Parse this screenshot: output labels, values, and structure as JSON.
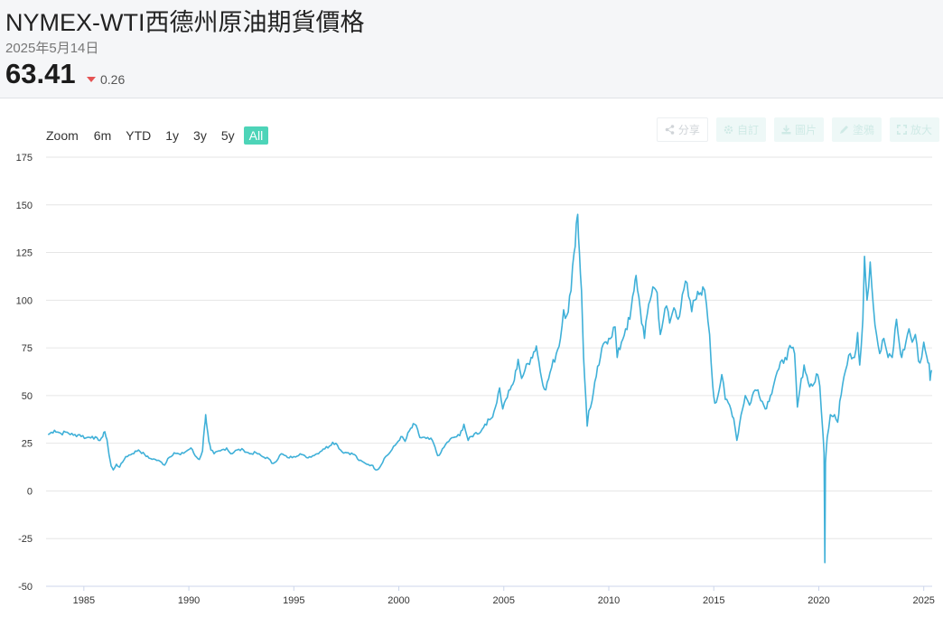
{
  "header": {
    "title": "NYMEX-WTI西德州原油期貨價格",
    "date": "2025年5月14日",
    "price": "63.41",
    "change": "0.26",
    "change_color": "#e55353"
  },
  "range_selector": {
    "label": "Zoom",
    "buttons": [
      "6m",
      "YTD",
      "1y",
      "3y",
      "5y",
      "All"
    ],
    "active": "All",
    "active_color": "#4dd4b8"
  },
  "toolbar": [
    {
      "label": "分享",
      "icon": "share-icon"
    },
    {
      "label": "自訂",
      "icon": "gear-icon"
    },
    {
      "label": "圖片",
      "icon": "download-icon"
    },
    {
      "label": "塗鴉",
      "icon": "pencil-icon"
    },
    {
      "label": "放大",
      "icon": "expand-icon"
    }
  ],
  "chart_data": {
    "type": "line",
    "title": "",
    "xlabel": "",
    "ylabel": "",
    "xlim": [
      1983.2,
      2025.4
    ],
    "ylim": [
      -50,
      175
    ],
    "x_ticks": [
      "1985",
      "1990",
      "1995",
      "2000",
      "2005",
      "2010",
      "2015",
      "2020",
      "2025"
    ],
    "y_ticks": [
      "175",
      "150",
      "125",
      "100",
      "75",
      "50",
      "25",
      "0",
      "-25",
      "-50"
    ],
    "grid": true,
    "legend": "none",
    "series_color": "#3fb0d8",
    "series": [
      {
        "points": [
          [
            1983.3,
            29.5
          ],
          [
            1983.6,
            31.8
          ],
          [
            1983.9,
            30.2
          ],
          [
            1984.2,
            30.8
          ],
          [
            1984.5,
            29.2
          ],
          [
            1984.8,
            29.5
          ],
          [
            1985.1,
            27.8
          ],
          [
            1985.4,
            28.6
          ],
          [
            1985.7,
            26.5
          ],
          [
            1985.9,
            28.5
          ],
          [
            1986.0,
            31.0
          ],
          [
            1986.1,
            27.0
          ],
          [
            1986.2,
            19.0
          ],
          [
            1986.3,
            13.0
          ],
          [
            1986.4,
            11.0
          ],
          [
            1986.55,
            14.0
          ],
          [
            1986.7,
            12.5
          ],
          [
            1986.85,
            15.2
          ],
          [
            1987.0,
            18.0
          ],
          [
            1987.3,
            19.5
          ],
          [
            1987.6,
            21.5
          ],
          [
            1987.9,
            19.0
          ],
          [
            1988.1,
            17.2
          ],
          [
            1988.4,
            16.5
          ],
          [
            1988.7,
            15.0
          ],
          [
            1988.85,
            13.5
          ],
          [
            1989.0,
            17.0
          ],
          [
            1989.3,
            20.0
          ],
          [
            1989.6,
            19.0
          ],
          [
            1989.9,
            21.0
          ],
          [
            1990.1,
            22.5
          ],
          [
            1990.3,
            18.5
          ],
          [
            1990.5,
            16.5
          ],
          [
            1990.65,
            21.0
          ],
          [
            1990.75,
            34.0
          ],
          [
            1990.8,
            40.0
          ],
          [
            1990.87,
            33.0
          ],
          [
            1990.95,
            26.0
          ],
          [
            1991.05,
            21.5
          ],
          [
            1991.2,
            19.5
          ],
          [
            1991.5,
            21.0
          ],
          [
            1991.8,
            22.5
          ],
          [
            1992.0,
            19.5
          ],
          [
            1992.3,
            21.5
          ],
          [
            1992.6,
            21.5
          ],
          [
            1992.9,
            19.5
          ],
          [
            1993.2,
            20.0
          ],
          [
            1993.5,
            18.0
          ],
          [
            1993.8,
            17.0
          ],
          [
            1993.95,
            14.5
          ],
          [
            1994.1,
            15.0
          ],
          [
            1994.4,
            19.5
          ],
          [
            1994.7,
            17.5
          ],
          [
            1995.0,
            18.0
          ],
          [
            1995.3,
            19.5
          ],
          [
            1995.6,
            17.5
          ],
          [
            1995.9,
            18.5
          ],
          [
            1996.1,
            19.5
          ],
          [
            1996.4,
            22.0
          ],
          [
            1996.7,
            23.5
          ],
          [
            1996.85,
            25.5
          ],
          [
            1997.0,
            25.0
          ],
          [
            1997.3,
            20.5
          ],
          [
            1997.6,
            20.0
          ],
          [
            1997.9,
            19.0
          ],
          [
            1998.1,
            16.0
          ],
          [
            1998.4,
            14.5
          ],
          [
            1998.7,
            13.5
          ],
          [
            1998.95,
            11.0
          ],
          [
            1999.1,
            12.5
          ],
          [
            1999.3,
            17.0
          ],
          [
            1999.6,
            20.5
          ],
          [
            1999.9,
            25.0
          ],
          [
            2000.1,
            28.5
          ],
          [
            2000.3,
            26.0
          ],
          [
            2000.5,
            31.5
          ],
          [
            2000.75,
            35.0
          ],
          [
            2000.9,
            32.0
          ],
          [
            2001.0,
            28.0
          ],
          [
            2001.3,
            27.5
          ],
          [
            2001.6,
            26.5
          ],
          [
            2001.85,
            18.5
          ],
          [
            2002.0,
            20.0
          ],
          [
            2002.3,
            25.5
          ],
          [
            2002.6,
            28.0
          ],
          [
            2002.9,
            29.0
          ],
          [
            2003.1,
            35.0
          ],
          [
            2003.3,
            26.5
          ],
          [
            2003.6,
            30.0
          ],
          [
            2003.9,
            31.0
          ],
          [
            2004.1,
            35.0
          ],
          [
            2004.4,
            38.0
          ],
          [
            2004.6,
            44.0
          ],
          [
            2004.8,
            54.0
          ],
          [
            2004.95,
            43.0
          ],
          [
            2005.1,
            48.0
          ],
          [
            2005.3,
            53.0
          ],
          [
            2005.5,
            58.0
          ],
          [
            2005.68,
            69.0
          ],
          [
            2005.85,
            59.0
          ],
          [
            2006.0,
            63.0
          ],
          [
            2006.3,
            70.0
          ],
          [
            2006.55,
            76.0
          ],
          [
            2006.8,
            59.0
          ],
          [
            2007.0,
            53.0
          ],
          [
            2007.2,
            62.0
          ],
          [
            2007.5,
            72.0
          ],
          [
            2007.7,
            80.0
          ],
          [
            2007.85,
            95.0
          ],
          [
            2008.0,
            92.0
          ],
          [
            2008.2,
            105.0
          ],
          [
            2008.35,
            125.0
          ],
          [
            2008.45,
            140.0
          ],
          [
            2008.52,
            145.0
          ],
          [
            2008.6,
            125.0
          ],
          [
            2008.7,
            105.0
          ],
          [
            2008.8,
            70.0
          ],
          [
            2008.9,
            50.0
          ],
          [
            2008.97,
            34.0
          ],
          [
            2009.05,
            42.0
          ],
          [
            2009.2,
            47.0
          ],
          [
            2009.4,
            60.0
          ],
          [
            2009.6,
            70.0
          ],
          [
            2009.8,
            78.0
          ],
          [
            2010.0,
            80.0
          ],
          [
            2010.3,
            86.0
          ],
          [
            2010.4,
            70.0
          ],
          [
            2010.6,
            78.0
          ],
          [
            2010.8,
            85.0
          ],
          [
            2011.0,
            90.0
          ],
          [
            2011.2,
            105.0
          ],
          [
            2011.3,
            113.0
          ],
          [
            2011.5,
            95.0
          ],
          [
            2011.7,
            80.0
          ],
          [
            2011.9,
            98.0
          ],
          [
            2012.1,
            107.0
          ],
          [
            2012.3,
            104.0
          ],
          [
            2012.45,
            82.0
          ],
          [
            2012.6,
            90.0
          ],
          [
            2012.75,
            97.0
          ],
          [
            2012.9,
            88.0
          ],
          [
            2013.1,
            96.0
          ],
          [
            2013.3,
            90.0
          ],
          [
            2013.5,
            103.0
          ],
          [
            2013.65,
            110.0
          ],
          [
            2013.8,
            102.0
          ],
          [
            2013.95,
            94.0
          ],
          [
            2014.1,
            100.0
          ],
          [
            2014.3,
            103.0
          ],
          [
            2014.48,
            107.0
          ],
          [
            2014.65,
            98.0
          ],
          [
            2014.8,
            82.0
          ],
          [
            2014.95,
            55.0
          ],
          [
            2015.05,
            46.0
          ],
          [
            2015.2,
            50.0
          ],
          [
            2015.38,
            61.0
          ],
          [
            2015.55,
            48.0
          ],
          [
            2015.75,
            45.0
          ],
          [
            2015.95,
            38.0
          ],
          [
            2016.1,
            26.5
          ],
          [
            2016.3,
            40.0
          ],
          [
            2016.5,
            50.0
          ],
          [
            2016.7,
            45.0
          ],
          [
            2016.9,
            52.0
          ],
          [
            2017.1,
            53.0
          ],
          [
            2017.45,
            43.0
          ],
          [
            2017.7,
            50.0
          ],
          [
            2017.95,
            60.0
          ],
          [
            2018.1,
            64.0
          ],
          [
            2018.4,
            70.0
          ],
          [
            2018.7,
            75.0
          ],
          [
            2018.85,
            72.0
          ],
          [
            2018.98,
            44.0
          ],
          [
            2019.1,
            53.0
          ],
          [
            2019.3,
            66.0
          ],
          [
            2019.5,
            57.0
          ],
          [
            2019.7,
            55.0
          ],
          [
            2019.95,
            61.0
          ],
          [
            2020.05,
            55.0
          ],
          [
            2020.2,
            30.0
          ],
          [
            2020.25,
            20.0
          ],
          [
            2020.29,
            -37.6
          ],
          [
            2020.32,
            15.0
          ],
          [
            2020.4,
            28.0
          ],
          [
            2020.55,
            40.0
          ],
          [
            2020.75,
            40.0
          ],
          [
            2020.9,
            36.0
          ],
          [
            2021.0,
            47.0
          ],
          [
            2021.2,
            60.0
          ],
          [
            2021.5,
            72.0
          ],
          [
            2021.7,
            70.0
          ],
          [
            2021.85,
            83.0
          ],
          [
            2021.95,
            66.0
          ],
          [
            2022.1,
            90.0
          ],
          [
            2022.18,
            123.0
          ],
          [
            2022.3,
            100.0
          ],
          [
            2022.45,
            120.0
          ],
          [
            2022.6,
            97.0
          ],
          [
            2022.75,
            82.0
          ],
          [
            2022.9,
            72.0
          ],
          [
            2023.1,
            80.0
          ],
          [
            2023.3,
            70.0
          ],
          [
            2023.5,
            70.0
          ],
          [
            2023.7,
            90.0
          ],
          [
            2023.85,
            76.0
          ],
          [
            2023.95,
            70.0
          ],
          [
            2024.15,
            78.0
          ],
          [
            2024.3,
            85.0
          ],
          [
            2024.45,
            78.0
          ],
          [
            2024.6,
            82.0
          ],
          [
            2024.75,
            68.0
          ],
          [
            2024.9,
            70.0
          ],
          [
            2025.0,
            78.0
          ],
          [
            2025.15,
            70.0
          ],
          [
            2025.25,
            67.0
          ],
          [
            2025.3,
            58.0
          ],
          [
            2025.37,
            63.4
          ]
        ]
      }
    ]
  }
}
